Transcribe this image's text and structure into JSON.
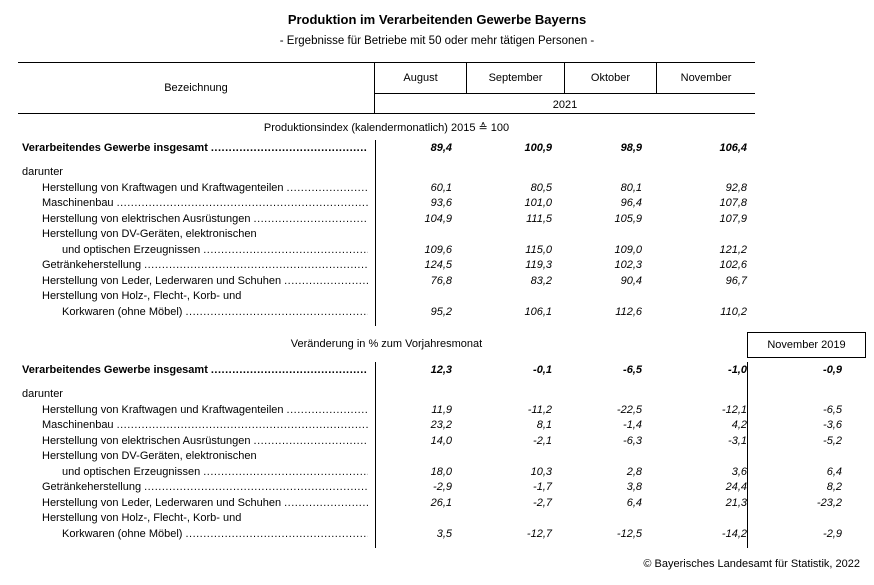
{
  "page": {
    "title": "Produktion im Verarbeitenden Gewerbe Bayerns",
    "subtitle": "- Ergebnisse für Betriebe mit 50 oder mehr tätigen Personen -",
    "footer": "© Bayerisches Landesamt für Statistik, 2022"
  },
  "table": {
    "label_column_header": "Bezeichnung",
    "months": [
      "August",
      "September",
      "Oktober",
      "November"
    ],
    "year": "2021"
  },
  "sections": [
    {
      "title": "Produktionsindex (kalendermonatlich) 2015 ≙ 100",
      "rows": [
        {
          "label": "Verarbeitendes Gewerbe insgesamt",
          "indent": 0,
          "bold": true,
          "leader": true,
          "values": [
            "89,4",
            "100,9",
            "98,9",
            "106,4"
          ]
        },
        {
          "label": "darunter",
          "indent": 0,
          "subhead": true
        },
        {
          "label": "Herstellung von Kraftwagen und Kraftwagenteilen",
          "indent": 1,
          "leader": true,
          "values": [
            "60,1",
            "80,5",
            "80,1",
            "92,8"
          ]
        },
        {
          "label": "Maschinenbau",
          "indent": 1,
          "leader": true,
          "values": [
            "93,6",
            "101,0",
            "96,4",
            "107,8"
          ]
        },
        {
          "label": "Herstellung von elektrischen Ausrüstungen",
          "indent": 1,
          "leader": true,
          "values": [
            "104,9",
            "111,5",
            "105,9",
            "107,9"
          ]
        },
        {
          "label": "Herstellung von DV-Geräten, elektronischen",
          "indent": 1
        },
        {
          "label": "und optischen Erzeugnissen",
          "indent": 2,
          "leader": true,
          "values": [
            "109,6",
            "115,0",
            "109,0",
            "121,2"
          ]
        },
        {
          "label": "Getränkeherstellung",
          "indent": 1,
          "leader": true,
          "values": [
            "124,5",
            "119,3",
            "102,3",
            "102,6"
          ]
        },
        {
          "label": "Herstellung von Leder, Lederwaren und Schuhen",
          "indent": 1,
          "leader": true,
          "values": [
            "76,8",
            "83,2",
            "90,4",
            "96,7"
          ]
        },
        {
          "label": "Herstellung von Holz-, Flecht-, Korb- und",
          "indent": 1
        },
        {
          "label": "Korkwaren (ohne Möbel)",
          "indent": 2,
          "leader": true,
          "values": [
            "95,2",
            "106,1",
            "112,6",
            "110,2"
          ]
        }
      ]
    },
    {
      "title": "Veränderung in % zum Vorjahresmonat",
      "extra_column_header": "November 2019",
      "rows": [
        {
          "label": "Verarbeitendes Gewerbe insgesamt",
          "indent": 0,
          "bold": true,
          "leader": true,
          "values": [
            "12,3",
            "-0,1",
            "-6,5",
            "-1,0",
            "-0,9"
          ]
        },
        {
          "label": "darunter",
          "indent": 0,
          "subhead": true
        },
        {
          "label": "Herstellung von Kraftwagen und Kraftwagenteilen",
          "indent": 1,
          "leader": true,
          "values": [
            "11,9",
            "-11,2",
            "-22,5",
            "-12,1",
            "-6,5"
          ]
        },
        {
          "label": "Maschinenbau",
          "indent": 1,
          "leader": true,
          "values": [
            "23,2",
            "8,1",
            "-1,4",
            "4,2",
            "-3,6"
          ]
        },
        {
          "label": "Herstellung von elektrischen Ausrüstungen",
          "indent": 1,
          "leader": true,
          "values": [
            "14,0",
            "-2,1",
            "-6,3",
            "-3,1",
            "-5,2"
          ]
        },
        {
          "label": "Herstellung von DV-Geräten, elektronischen",
          "indent": 1
        },
        {
          "label": "und optischen Erzeugnissen",
          "indent": 2,
          "leader": true,
          "values": [
            "18,0",
            "10,3",
            "2,8",
            "3,6",
            "6,4"
          ]
        },
        {
          "label": "Getränkeherstellung",
          "indent": 1,
          "leader": true,
          "values": [
            "-2,9",
            "-1,7",
            "3,8",
            "24,4",
            "8,2"
          ]
        },
        {
          "label": "Herstellung von Leder, Lederwaren und Schuhen",
          "indent": 1,
          "leader": true,
          "values": [
            "26,1",
            "-2,7",
            "6,4",
            "21,3",
            "-23,2"
          ]
        },
        {
          "label": "Herstellung von Holz-, Flecht-, Korb- und",
          "indent": 1
        },
        {
          "label": "Korkwaren (ohne Möbel)",
          "indent": 2,
          "leader": true,
          "values": [
            "3,5",
            "-12,7",
            "-12,5",
            "-14,2",
            "-2,9"
          ]
        }
      ]
    }
  ]
}
